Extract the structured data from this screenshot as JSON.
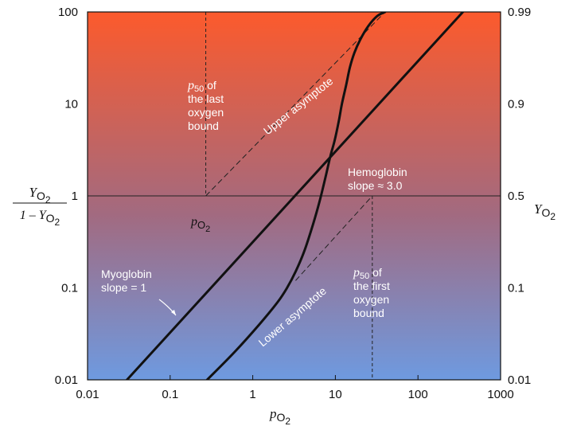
{
  "chart_data": {
    "type": "line",
    "x_scale": "log",
    "y_scale": "log",
    "xlim": [
      0.01,
      1000
    ],
    "ylim": [
      0.01,
      100
    ],
    "x_ticks": [
      "0.01",
      "0.1",
      "1",
      "10",
      "100",
      "1000"
    ],
    "y_ticks_left": [
      "0.01",
      "0.1",
      "1",
      "10",
      "100"
    ],
    "y_ticks_right": [
      "0.01",
      "0.1",
      "0.5",
      "0.9",
      "0.99"
    ],
    "xlabel": {
      "italic": "p",
      "sub": "O",
      "subsub": "2"
    },
    "ylabel_left": {
      "numerator": "Y",
      "num_sub": "O",
      "num_subsub": "2",
      "denominator": "1 – Y",
      "den_sub": "O",
      "den_subsub": "2"
    },
    "ylabel_right": {
      "italic": "Y",
      "sub": "O",
      "subsub": "2"
    },
    "series": [
      {
        "name": "Myoglobin",
        "x": [
          0.03,
          350
        ],
        "y": [
          0.01,
          100
        ]
      },
      {
        "name": "Hemoglobin",
        "x": [
          0.28,
          0.6,
          1.2,
          2.0,
          2.6,
          3.3,
          4.2,
          5.4,
          6.5,
          7.6,
          8.7,
          9.8,
          11,
          12,
          13.5,
          15,
          17,
          20,
          25,
          32,
          40
        ],
        "y": [
          0.01,
          0.02,
          0.04,
          0.07,
          0.1,
          0.15,
          0.25,
          0.5,
          0.9,
          1.6,
          2.7,
          4.0,
          6.5,
          10,
          16,
          25,
          36,
          50,
          70,
          90,
          100
        ]
      }
    ],
    "reference_lines": [
      {
        "name": "Upper asymptote",
        "x": [
          0.27,
          40
        ],
        "y": [
          1,
          100
        ]
      },
      {
        "name": "Lower asymptote",
        "x": [
          3.3,
          28
        ],
        "y": [
          0.12,
          1
        ]
      },
      {
        "name": "p50 last bound",
        "x": 0.27
      },
      {
        "name": "p50 first bound",
        "x": 28
      },
      {
        "name": "half saturation",
        "y": 1
      }
    ],
    "annotations": {
      "p50_last": [
        "of",
        "the last",
        "oxygen",
        "bound"
      ],
      "p50_first": [
        "of",
        "the first",
        "oxygen",
        "bound"
      ],
      "p50_prefix": "p",
      "p50_sub": "50",
      "upper_asymptote": "Upper asymptote",
      "lower_asymptote": "Lower asymptote",
      "hemoglobin": [
        "Hemoglobin",
        "slope ≈ 3.0"
      ],
      "myoglobin": [
        "Myoglobin",
        "slope = 1"
      ],
      "po2_marker": {
        "italic": "p",
        "sub": "O",
        "subsub": "2"
      }
    },
    "colors": {
      "top": "#fc5a2c",
      "middle": "#a26a80",
      "bottom": "#6e9ae0",
      "curve": "#111111"
    }
  }
}
